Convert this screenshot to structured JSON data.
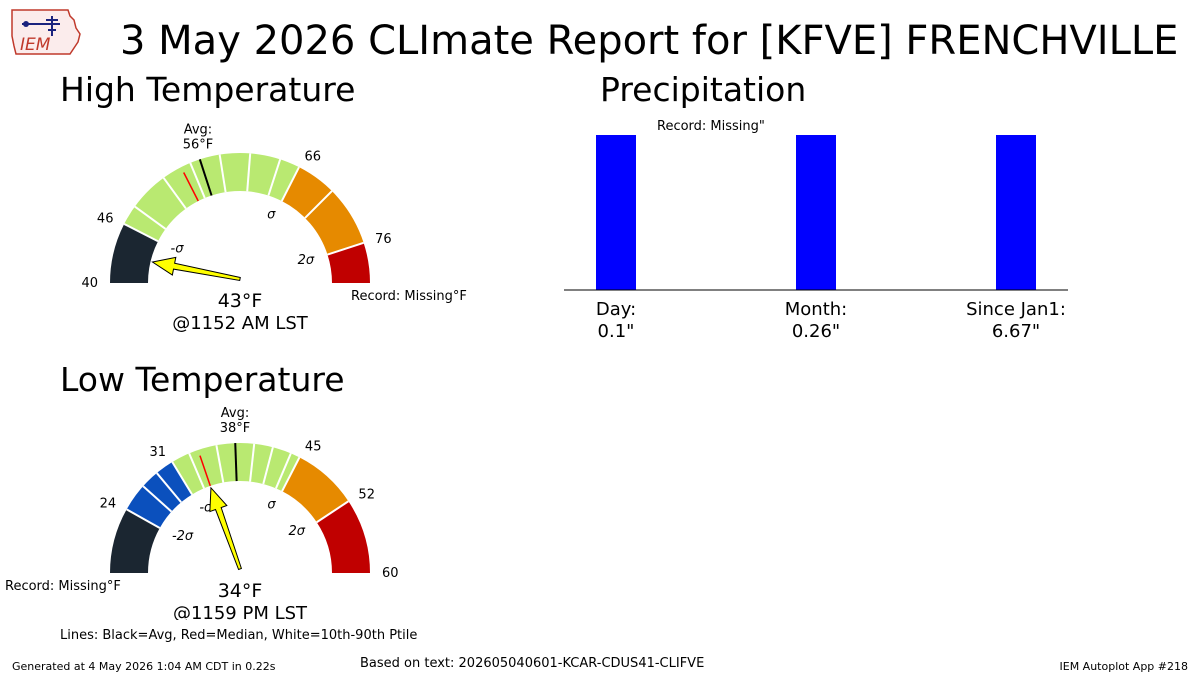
{
  "title": "3 May 2026 CLImate Report for [KFVE] FRENCHVILLE",
  "logo_text": "IEM",
  "lines_legend": "Lines: Black=Avg, Red=Median, White=10th-90th Ptile",
  "footer": {
    "generated": "Generated at 4 May 2026 1:04 AM CDT in 0.22s",
    "source": "Based on text: 202605040601-KCAR-CDUS41-CLIFVE",
    "app": "IEM Autoplot App #218"
  },
  "colors": {
    "very_cold": "#1b2631",
    "cold": "#0b50bd",
    "normal": "#b9e971",
    "warm": "#e68a00",
    "very_warm": "#c00000",
    "pointer": "#ffff00",
    "median": "#ff0000",
    "bar": "#0000ff"
  },
  "chart_data": [
    {
      "type": "gauge",
      "title": "High Temperature",
      "min": 40,
      "max": 80,
      "band_edges": [
        40,
        46,
        66,
        76,
        80
      ],
      "band_colors": [
        "very_cold",
        "normal",
        "warm",
        "very_warm"
      ],
      "tick_labels": [
        {
          "value": 40,
          "text": "40"
        },
        {
          "value": 46,
          "text": "46"
        },
        {
          "value": 66,
          "text": "66"
        },
        {
          "value": 76,
          "text": "76"
        }
      ],
      "sigma_labels": [
        {
          "value": 46,
          "text": "-σ"
        },
        {
          "value": 66,
          "text": "σ"
        },
        {
          "value": 76,
          "text": "2σ"
        }
      ],
      "avg": 56,
      "avg_label": "Avg:",
      "avg_value": "56°F",
      "median": 54,
      "percentile_lines": [
        48,
        52,
        55,
        58,
        61,
        64,
        70
      ],
      "observed": 43,
      "observed_label": "43°F",
      "time_label": "@1152 AM LST",
      "record_label": "Record: Missing°F"
    },
    {
      "type": "gauge",
      "title": "Low Temperature",
      "min": 17,
      "max": 60,
      "band_edges": [
        17,
        24,
        31,
        45,
        52,
        60
      ],
      "band_colors": [
        "very_cold",
        "cold",
        "normal",
        "warm",
        "very_warm"
      ],
      "tick_labels": [
        {
          "value": 24,
          "text": "24"
        },
        {
          "value": 31,
          "text": "31"
        },
        {
          "value": 45,
          "text": "45"
        },
        {
          "value": 52,
          "text": "52"
        },
        {
          "value": 60,
          "text": "60"
        }
      ],
      "sigma_labels": [
        {
          "value": 24,
          "text": "-2σ"
        },
        {
          "value": 31,
          "text": "-σ"
        },
        {
          "value": 45,
          "text": "σ"
        },
        {
          "value": 52,
          "text": "2σ"
        }
      ],
      "avg": 38,
      "avg_label": "Avg:",
      "avg_value": "38°F",
      "median": 34,
      "percentile_lines": [
        27,
        29,
        33,
        36,
        40,
        42,
        44
      ],
      "observed": 34,
      "observed_label": "34°F",
      "time_label": "@1159 PM LST",
      "record_label": "Record: Missing°F"
    },
    {
      "type": "bar",
      "title": "Precipitation",
      "record_label": "Record: Missing\"",
      "categories": [
        "Day:",
        "Month:",
        "Since Jan1:"
      ],
      "values": [
        0.1,
        0.26,
        6.67
      ],
      "value_labels": [
        "0.1\"",
        "0.26\"",
        "6.67\""
      ]
    }
  ]
}
